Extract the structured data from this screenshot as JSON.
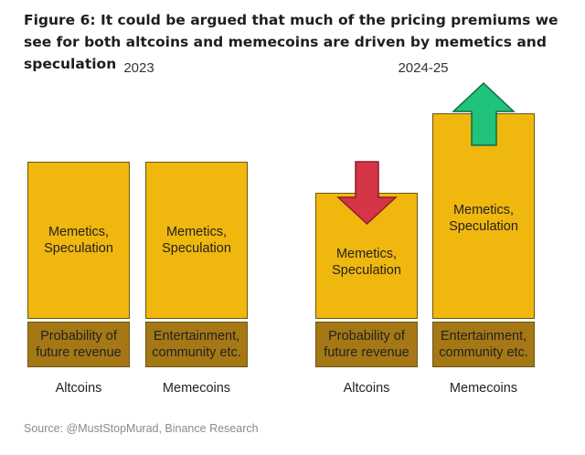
{
  "title": "Figure 6: It could be argued that much of the pricing premiums we see for both altcoins and memecoins are driven by memetics and speculation",
  "groups": [
    {
      "label": "2023",
      "columns": [
        {
          "top": "Memetics, Speculation",
          "bottom": "Probability of future revenue",
          "label": "Altcoins"
        },
        {
          "top": "Memetics, Speculation",
          "bottom": "Entertainment, community etc.",
          "label": "Memecoins"
        }
      ]
    },
    {
      "label": "2024-25",
      "columns": [
        {
          "top": "Memetics, Speculation",
          "bottom": "Probability of future revenue",
          "label": "Altcoins",
          "arrow": "down"
        },
        {
          "top": "Memetics, Speculation",
          "bottom": "Entertainment, community etc.",
          "label": "Memecoins",
          "arrow": "up"
        }
      ]
    }
  ],
  "source": "Source: @MustStopMurad, Binance Research",
  "colors": {
    "top_box": "#f0b70e",
    "bottom_box": "#a57815",
    "down_arrow": "#d63447",
    "up_arrow": "#1fc47a"
  }
}
